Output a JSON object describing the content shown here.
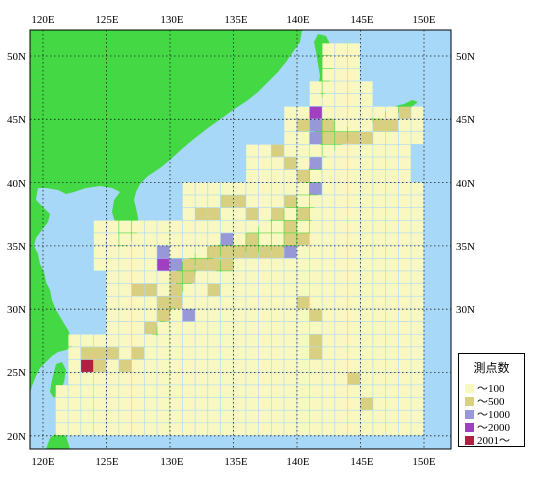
{
  "map": {
    "lon_labels": [
      "120E",
      "125E",
      "130E",
      "135E",
      "140E",
      "145E",
      "150E"
    ],
    "lat_labels": [
      "50N",
      "45N",
      "40N",
      "35N",
      "30N",
      "25N",
      "20N"
    ],
    "colors": {
      "sea": "#a8d8f8",
      "land": "#44d844",
      "grid": "#202020"
    }
  },
  "legend": {
    "title": "測点数",
    "items": [
      {
        "label": "～100",
        "color": "#f8f8c0"
      },
      {
        "label": "～500",
        "color": "#d8d080"
      },
      {
        "label": "～1000",
        "color": "#9898d8"
      },
      {
        "label": "～2000",
        "color": "#a040c0"
      },
      {
        "label": "2001～",
        "color": "#b02040"
      }
    ]
  }
}
